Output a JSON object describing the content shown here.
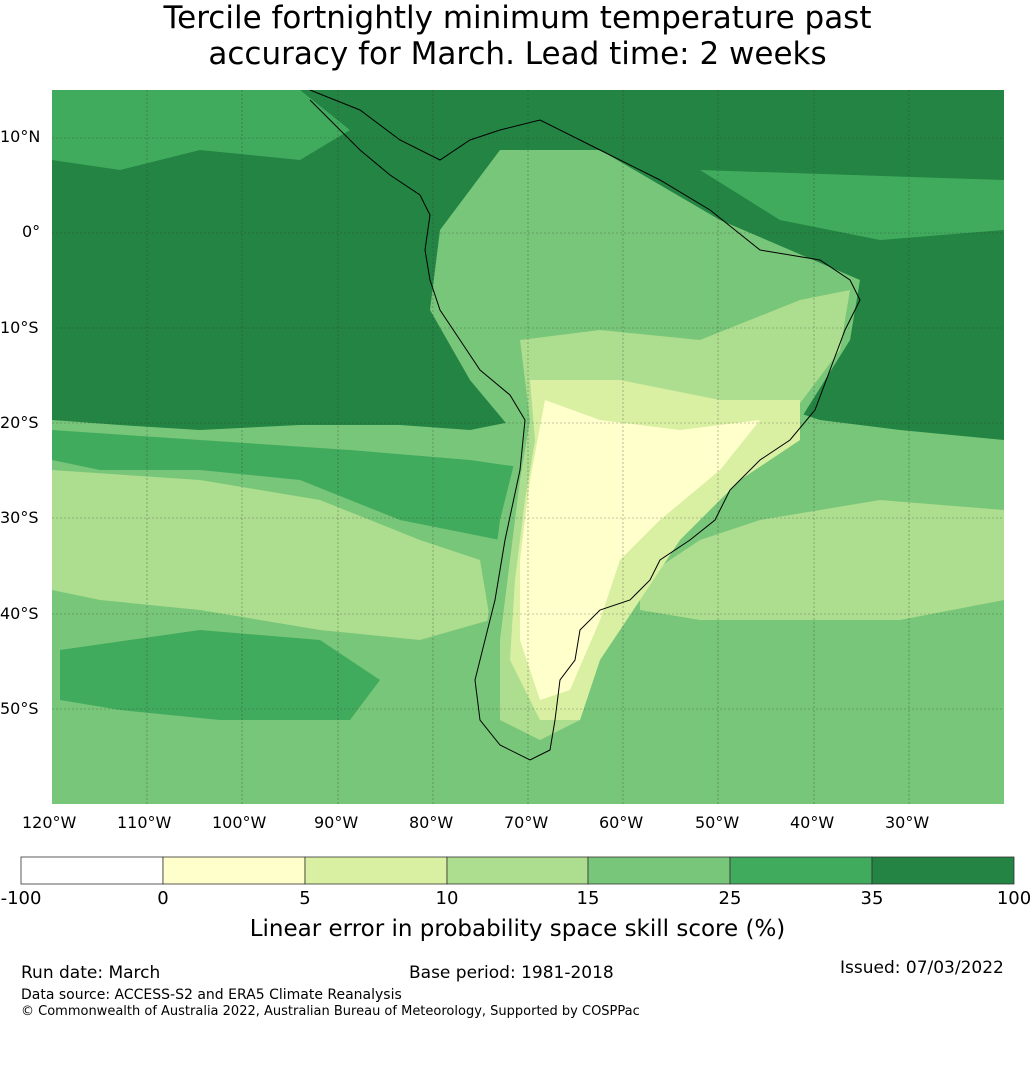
{
  "title": {
    "line1": "Tercile fortnightly minimum temperature past",
    "line2": "accuracy for March. Lead time: 2 weeks"
  },
  "map": {
    "lat_labels": [
      "10°N",
      "0°",
      "10°S",
      "20°S",
      "30°S",
      "40°S",
      "50°S"
    ],
    "lon_labels": [
      "120°W",
      "110°W",
      "100°W",
      "90°W",
      "80°W",
      "70°W",
      "60°W",
      "50°W",
      "40°W",
      "30°W"
    ],
    "extent": {
      "lon_min": -120,
      "lon_max": -20,
      "lat_min": -60,
      "lat_max": 15
    }
  },
  "colorbar": {
    "label": "Linear error in probability space skill score (%)",
    "ticks": [
      "-100",
      "0",
      "5",
      "10",
      "15",
      "25",
      "35",
      "100"
    ],
    "colors": [
      "#ffffff",
      "#ffffcc",
      "#d9f0a3",
      "#addd8e",
      "#78c679",
      "#41ab5d",
      "#238443"
    ]
  },
  "footer": {
    "run_date": "Run date: March",
    "base_period": "Base period: 1981-2018",
    "issued": "Issued: 07/03/2022",
    "data_source": "Data source: ACCESS-S2 and ERA5 Climate Reanalysis",
    "copyright": "© Commonwealth of Australia 2022, Australian Bureau of Meteorology, Supported by COSPPac"
  }
}
